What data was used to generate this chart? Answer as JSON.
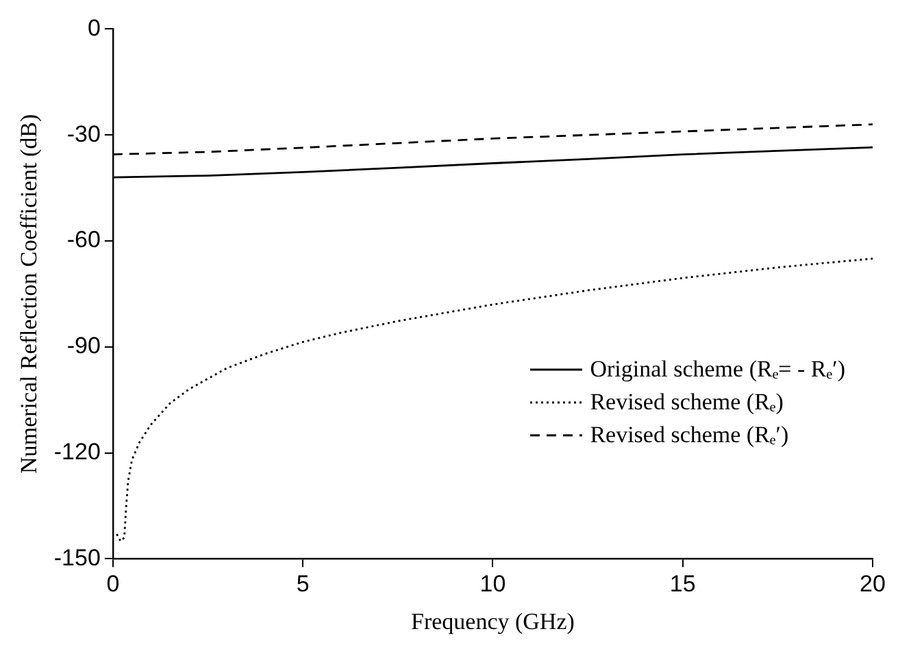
{
  "chart_data": {
    "type": "line",
    "xlabel": "Frequency (GHz)",
    "ylabel": "Numerical Reflection Coefficient (dB)",
    "xlim": [
      0,
      20
    ],
    "xticks": [
      0,
      5,
      10,
      15,
      20
    ],
    "ylim": [
      -150,
      0
    ],
    "yticks": [
      -150,
      -120,
      -90,
      -60,
      -30,
      0
    ],
    "grid": false,
    "legend": "right",
    "marker": "none",
    "series": [
      {
        "name": "Original scheme (Rₑ= - Rₑ′)",
        "color": "#000000",
        "line_style": "solid",
        "x": [
          0,
          2.5,
          5,
          7.5,
          10,
          12.5,
          15,
          17.5,
          20
        ],
        "values": [
          -42,
          -41.5,
          -40.5,
          -39.3,
          -38,
          -36.8,
          -35.5,
          -34.5,
          -33.5
        ]
      },
      {
        "name": "Revised scheme (Rₑ)",
        "color": "#000000",
        "line_style": "dotted",
        "x": [
          0.1,
          0.2,
          0.3,
          0.35,
          0.4,
          0.5,
          0.7,
          1,
          1.5,
          2,
          2.5,
          3,
          4,
          5,
          6,
          7.5,
          10,
          12.5,
          15,
          17.5,
          20
        ],
        "values": [
          -143,
          -145,
          -144,
          -135,
          -128,
          -122,
          -117,
          -112,
          -106,
          -102,
          -99,
          -96,
          -92,
          -88.6,
          -86,
          -82.7,
          -78,
          -74,
          -70.5,
          -67.5,
          -65
        ]
      },
      {
        "name": "Revised scheme (Rₑ′)",
        "color": "#000000",
        "line_style": "dashed",
        "x": [
          0,
          2.5,
          5,
          7.5,
          10,
          12.5,
          15,
          17.5,
          20
        ],
        "values": [
          -35.5,
          -34.8,
          -33.6,
          -32.3,
          -31,
          -30,
          -29,
          -28,
          -27
        ]
      }
    ]
  }
}
